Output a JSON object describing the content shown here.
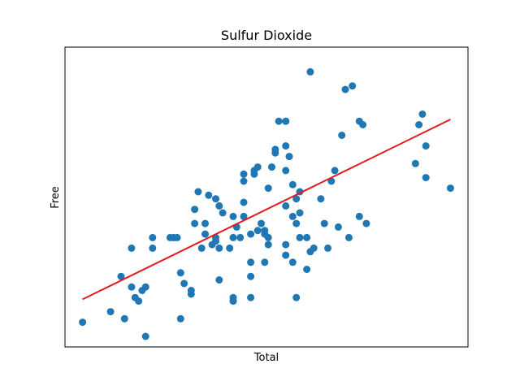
{
  "chart_data": {
    "type": "scatter",
    "title": "Sulfur Dioxide",
    "xlabel": "Total",
    "ylabel": "Free",
    "xlim": [
      0,
      115
    ],
    "ylim": [
      0,
      85
    ],
    "grid": false,
    "show_ticks": false,
    "point_color": "#1f77b4",
    "line_color": "#e41a1c",
    "trend_line": {
      "x": [
        5,
        110
      ],
      "y": [
        13.5,
        64.5
      ]
    },
    "points": [
      [
        5,
        7
      ],
      [
        13,
        10
      ],
      [
        17,
        8
      ],
      [
        19,
        17
      ],
      [
        19,
        28
      ],
      [
        20,
        14
      ],
      [
        16,
        20
      ],
      [
        21,
        13
      ],
      [
        23,
        3
      ],
      [
        23,
        17
      ],
      [
        22,
        16
      ],
      [
        25,
        28
      ],
      [
        25,
        31
      ],
      [
        30,
        31
      ],
      [
        31,
        31
      ],
      [
        32,
        31
      ],
      [
        33,
        21
      ],
      [
        33,
        8
      ],
      [
        34,
        18
      ],
      [
        36,
        16
      ],
      [
        36,
        15
      ],
      [
        37,
        39
      ],
      [
        37,
        35
      ],
      [
        38,
        44
      ],
      [
        39,
        28
      ],
      [
        40,
        32
      ],
      [
        40,
        35
      ],
      [
        41,
        43
      ],
      [
        43,
        42
      ],
      [
        42,
        29
      ],
      [
        43,
        31
      ],
      [
        43,
        30
      ],
      [
        44,
        40
      ],
      [
        44,
        19
      ],
      [
        44,
        28
      ],
      [
        45,
        38
      ],
      [
        47,
        28
      ],
      [
        48,
        31
      ],
      [
        48,
        37
      ],
      [
        48,
        14
      ],
      [
        48,
        13
      ],
      [
        49,
        34
      ],
      [
        50,
        31
      ],
      [
        51,
        49
      ],
      [
        51,
        47
      ],
      [
        51,
        37
      ],
      [
        51,
        41
      ],
      [
        53,
        32
      ],
      [
        53,
        20
      ],
      [
        53,
        14
      ],
      [
        53,
        24
      ],
      [
        54,
        49
      ],
      [
        54,
        50
      ],
      [
        55,
        51
      ],
      [
        55,
        33
      ],
      [
        56,
        35
      ],
      [
        57,
        33
      ],
      [
        57,
        24
      ],
      [
        58,
        45
      ],
      [
        58,
        29
      ],
      [
        57,
        32
      ],
      [
        58,
        31
      ],
      [
        59,
        51
      ],
      [
        60,
        55
      ],
      [
        60,
        56
      ],
      [
        61,
        64
      ],
      [
        63,
        64
      ],
      [
        63,
        64
      ],
      [
        63,
        57
      ],
      [
        63,
        50
      ],
      [
        63,
        29
      ],
      [
        63,
        40
      ],
      [
        63,
        26
      ],
      [
        64,
        54
      ],
      [
        65,
        46
      ],
      [
        65,
        24
      ],
      [
        65,
        37
      ],
      [
        66,
        35
      ],
      [
        66,
        14
      ],
      [
        66,
        42
      ],
      [
        67,
        38
      ],
      [
        67,
        31
      ],
      [
        67,
        44
      ],
      [
        69,
        22
      ],
      [
        69,
        31
      ],
      [
        70,
        27
      ],
      [
        70,
        78
      ],
      [
        71,
        28
      ],
      [
        73,
        42
      ],
      [
        74,
        35
      ],
      [
        75,
        28
      ],
      [
        76,
        47
      ],
      [
        77,
        50
      ],
      [
        78,
        34
      ],
      [
        79,
        60
      ],
      [
        80,
        73
      ],
      [
        81,
        31
      ],
      [
        82,
        74
      ],
      [
        84,
        37
      ],
      [
        84,
        64
      ],
      [
        85,
        63
      ],
      [
        86,
        35
      ],
      [
        100,
        52
      ],
      [
        101,
        63
      ],
      [
        102,
        66
      ],
      [
        103,
        48
      ],
      [
        103,
        57
      ],
      [
        110,
        45
      ]
    ]
  }
}
